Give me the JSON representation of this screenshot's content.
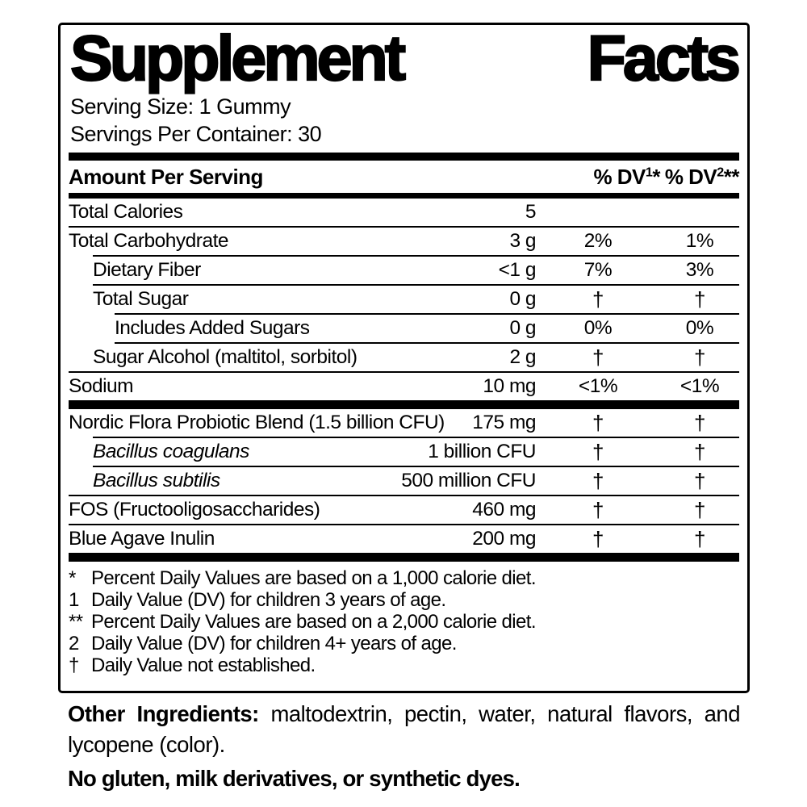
{
  "colors": {
    "text": "#000000",
    "background": "#ffffff"
  },
  "label": {
    "title_word1": "Supplement",
    "title_word2": "Facts",
    "serving_size": "Serving Size: 1 Gummy",
    "servings_per_container": "Servings Per Container: 30",
    "header": {
      "amount_label": "Amount Per Serving",
      "dv1": {
        "base": "% DV",
        "sup": "1",
        "ast": "*"
      },
      "dv2": {
        "base": "% DV",
        "sup": "2",
        "ast": "**"
      }
    },
    "rows": [
      {
        "name": "Total Calories",
        "amount": "5",
        "dv1": "",
        "dv2": ""
      },
      {
        "name": "Total Carbohydrate",
        "amount": "3 g",
        "dv1": "2%",
        "dv2": "1%"
      },
      {
        "name": "Dietary Fiber",
        "amount": "<1 g",
        "dv1": "7%",
        "dv2": "3%"
      },
      {
        "name": "Total Sugar",
        "amount": "0 g",
        "dv1": "†",
        "dv2": "†"
      },
      {
        "name": "Includes Added Sugars",
        "amount": "0 g",
        "dv1": "0%",
        "dv2": "0%"
      },
      {
        "name": "Sugar Alcohol (maltitol, sorbitol)",
        "amount": "2 g",
        "dv1": "†",
        "dv2": "†"
      },
      {
        "name": "Sodium",
        "amount": "10 mg",
        "dv1": "<1%",
        "dv2": "<1%"
      },
      {
        "name": "Nordic Flora Probiotic Blend (1.5 billion CFU)",
        "amount": "175 mg",
        "dv1": "†",
        "dv2": "†"
      },
      {
        "name": "Bacillus coagulans",
        "amount": "1 billion CFU",
        "dv1": "†",
        "dv2": "†"
      },
      {
        "name": "Bacillus subtilis",
        "amount": "500 million CFU",
        "dv1": "†",
        "dv2": "†"
      },
      {
        "name": "FOS (Fructooligosaccharides)",
        "amount": "460 mg",
        "dv1": "†",
        "dv2": "†"
      },
      {
        "name": "Blue Agave Inulin",
        "amount": "200 mg",
        "dv1": "†",
        "dv2": "†"
      }
    ],
    "footnotes": [
      {
        "marker": "*",
        "text": "Percent Daily Values are based on a 1,000 calorie diet."
      },
      {
        "marker": "1",
        "text": "Daily Value (DV) for children 3 years of age."
      },
      {
        "marker": "**",
        "text": "Percent Daily Values are based on a 2,000 calorie diet."
      },
      {
        "marker": "2",
        "text": "Daily Value (DV) for children 4+ years of age."
      },
      {
        "marker": "†",
        "text": "Daily Value not established."
      }
    ],
    "other_ingredients": {
      "lead": "Other Ingredients:",
      "text": " maltodextrin, pectin, water, natural flavors, and lycopene (color)."
    },
    "no_statement": "No gluten, milk derivatives, or synthetic dyes."
  }
}
